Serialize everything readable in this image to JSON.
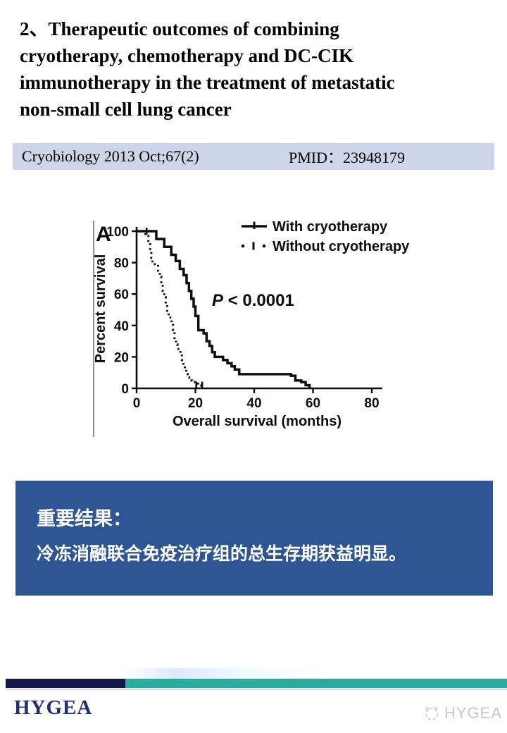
{
  "title": {
    "lines": [
      "2、Therapeutic outcomes of combining",
      "cryotherapy, chemotherapy and DC-CIK",
      "immunotherapy in the treatment of metastatic",
      "non-small cell lung cancer"
    ]
  },
  "citation": {
    "journal": "Cryobiology 2013 Oct;67(2)",
    "pmid": "PMID：23948179",
    "bg_color": "#ccd5ea"
  },
  "chart_data": {
    "type": "line",
    "subtype": "kaplan-meier-step",
    "panel_label": "A",
    "title": "",
    "xlabel": "Overall survival (months)",
    "ylabel": "Percent survival",
    "xlim": [
      0,
      80
    ],
    "ylim": [
      0,
      100
    ],
    "xticks": [
      0,
      20,
      40,
      60,
      80
    ],
    "yticks": [
      0,
      20,
      40,
      60,
      80,
      100
    ],
    "grid": false,
    "legend_position": "top-right",
    "annotation": "P < 0.0001",
    "ink_color": "#0d0d0d",
    "series": [
      {
        "name": "With cryotherapy",
        "style": "solid",
        "start": [
          0,
          100
        ],
        "drops": [
          [
            6.7,
            95
          ],
          [
            9.4,
            90
          ],
          [
            11.8,
            85
          ],
          [
            13.3,
            81
          ],
          [
            14.7,
            76
          ],
          [
            16,
            72
          ],
          [
            17,
            67
          ],
          [
            17.8,
            62
          ],
          [
            18.6,
            57
          ],
          [
            19.4,
            52
          ],
          [
            20,
            46
          ],
          [
            21,
            37
          ],
          [
            22.8,
            35
          ],
          [
            23.8,
            30
          ],
          [
            24.8,
            27
          ],
          [
            25.7,
            23
          ],
          [
            26.6,
            20
          ],
          [
            29.4,
            18
          ],
          [
            30.9,
            16
          ],
          [
            32.3,
            14
          ],
          [
            33.4,
            12
          ],
          [
            34.9,
            9
          ],
          [
            52.5,
            8
          ],
          [
            54,
            5
          ],
          [
            56,
            4
          ],
          [
            57.5,
            2
          ],
          [
            58.8,
            0
          ]
        ],
        "censor_marks": [
          [
            3.4,
            100
          ]
        ]
      },
      {
        "name": "Without cryotherapy",
        "style": "dashed",
        "start": [
          2,
          100
        ],
        "drops": [
          [
            3,
            97
          ],
          [
            4,
            93
          ],
          [
            4.6,
            88
          ],
          [
            5,
            83
          ],
          [
            5.4,
            79
          ],
          [
            7.3,
            74
          ],
          [
            7.9,
            71
          ],
          [
            8.4,
            66
          ],
          [
            8.9,
            62
          ],
          [
            9.4,
            58
          ],
          [
            9.9,
            53
          ],
          [
            10.4,
            48
          ],
          [
            10.9,
            45
          ],
          [
            11.9,
            42
          ],
          [
            12.4,
            37
          ],
          [
            12.9,
            31
          ],
          [
            13.4,
            28
          ],
          [
            13.9,
            25
          ],
          [
            14.9,
            22
          ],
          [
            15.4,
            18
          ],
          [
            15.9,
            15
          ],
          [
            16.4,
            12
          ],
          [
            16.9,
            9
          ],
          [
            17.4,
            7
          ],
          [
            17.9,
            5
          ],
          [
            18.9,
            4
          ],
          [
            19.9,
            3
          ],
          [
            20.9,
            2
          ],
          [
            21.9,
            0
          ]
        ],
        "censor_marks": [
          [
            20.3,
            2
          ],
          [
            22.3,
            2
          ]
        ]
      }
    ]
  },
  "result_box": {
    "heading": "重要结果：",
    "body": "冷冻消融联合免疫治疗组的总生存期获益明显。",
    "bg_color": "#2e5695"
  },
  "footer": {
    "logo_text": "HYGEA",
    "logo_color": "#232d72",
    "navy_bar_color": "#17174a",
    "teal_bar_color": "#2baa9e",
    "watermark_text": "HYGEA",
    "watermark_color": "#c6c6c6"
  }
}
